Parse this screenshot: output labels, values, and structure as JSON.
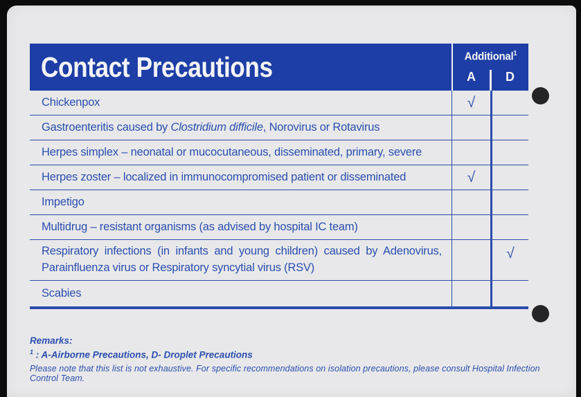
{
  "card": {
    "title": "Contact Precautions",
    "additional_header": {
      "label": "Additional",
      "superscript": "1",
      "columns": [
        "A",
        "D"
      ]
    },
    "check_symbol": "√",
    "rows": [
      {
        "segments": [
          {
            "text": "Chickenpox",
            "italic": false
          }
        ],
        "A": true,
        "D": false,
        "tall": false
      },
      {
        "segments": [
          {
            "text": "Gastroenteritis caused by ",
            "italic": false
          },
          {
            "text": "Clostridium difficile",
            "italic": true
          },
          {
            "text": ", Norovirus or Rotavirus",
            "italic": false
          }
        ],
        "A": false,
        "D": false,
        "tall": false
      },
      {
        "segments": [
          {
            "text": "Herpes simplex – neonatal or mucocutaneous, disseminated, primary, severe",
            "italic": false
          }
        ],
        "A": false,
        "D": false,
        "tall": false
      },
      {
        "segments": [
          {
            "text": "Herpes zoster – localized in immunocompromised patient or disseminated",
            "italic": false
          }
        ],
        "A": true,
        "D": false,
        "tall": false
      },
      {
        "segments": [
          {
            "text": "Impetigo",
            "italic": false
          }
        ],
        "A": false,
        "D": false,
        "tall": false
      },
      {
        "segments": [
          {
            "text": "Multidrug – resistant organisms (as advised by hospital IC team)",
            "italic": false
          }
        ],
        "A": false,
        "D": false,
        "tall": false
      },
      {
        "segments": [
          {
            "text": "Respiratory infections (in infants and young children) caused by Adenovirus, Parainfluenza virus or Respiratory syncytial virus (RSV)",
            "italic": false
          }
        ],
        "A": false,
        "D": true,
        "tall": true
      },
      {
        "segments": [
          {
            "text": "Scabies",
            "italic": false
          }
        ],
        "A": false,
        "D": false,
        "tall": false
      }
    ],
    "remarks": {
      "heading": "Remarks:",
      "footnote_sup": "1",
      "footnote_text": " : A-Airborne Precautions, D- Droplet Precautions",
      "disclaimer": "Please note that this list is not exhaustive. For specific recommendations on isolation precautions, please consult Hospital Infection Control Team."
    },
    "colors": {
      "banner": "#1d3ea6",
      "text_blue": "#2b4fae",
      "line_blue": "#2a4cab",
      "card_bg": "#e8e8ea",
      "frame": "#0c0c0d",
      "hole": "#252528"
    }
  }
}
